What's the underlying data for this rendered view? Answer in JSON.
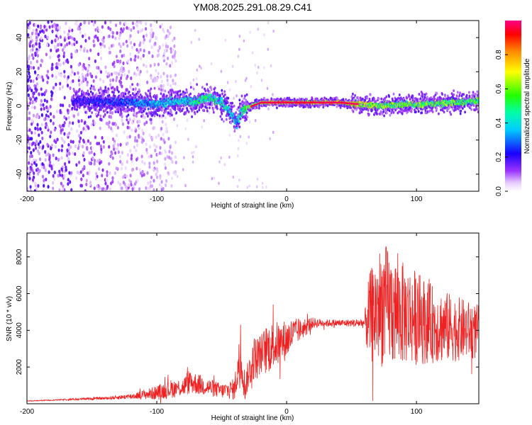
{
  "figure": {
    "title": "YM08.2025.291.08.29.C41"
  },
  "chart_data": [
    {
      "type": "heatmap",
      "title": "YM08.2025.291.08.29.C41",
      "xlabel": "Height of straight line (km)",
      "ylabel": "Frequency (Hz)",
      "xlim": [
        -200,
        148
      ],
      "ylim": [
        -50,
        50
      ],
      "xticks": [
        -200,
        -100,
        0,
        100
      ],
      "yticks": [
        -40,
        -20,
        0,
        20,
        40
      ],
      "colorbar": {
        "label": "Normalized spectral amplitude",
        "range": [
          0,
          1
        ],
        "ticks": [
          0.0,
          0.2,
          0.4,
          0.6,
          0.8
        ],
        "colors": [
          "#ffffff",
          "#cc99ff",
          "#7700ee",
          "#0000ff",
          "#00ffff",
          "#00ff00",
          "#ffff00",
          "#ff8800",
          "#ff0000",
          "#ff0066"
        ]
      },
      "ridge": {
        "description_x": [
          -160,
          -120,
          -100,
          -80,
          -70,
          -60,
          -50,
          -45,
          -38,
          -35,
          -30,
          -20,
          -10,
          0,
          20,
          40,
          55,
          70,
          90,
          110,
          130,
          148
        ],
        "frequency_hz": [
          3,
          2,
          1,
          3,
          2,
          5,
          2,
          -2,
          -10,
          -3,
          -1,
          2,
          2,
          2,
          2,
          2,
          1,
          0,
          1,
          1,
          2,
          3
        ],
        "peak_amplitude": [
          0.25,
          0.35,
          0.45,
          0.5,
          0.55,
          0.6,
          0.55,
          0.5,
          0.45,
          0.55,
          0.7,
          0.8,
          0.9,
          0.95,
          0.95,
          0.95,
          0.85,
          0.75,
          0.7,
          0.7,
          0.7,
          0.65
        ]
      },
      "noise_region_x": [
        -200,
        -100
      ]
    },
    {
      "type": "line",
      "xlabel": "Height of straight line (km)",
      "ylabel": "SNR (10 * v/v)",
      "xlim": [
        -200,
        148
      ],
      "ylim": [
        0,
        9300
      ],
      "xticks": [
        -200,
        -100,
        0,
        100
      ],
      "yticks": [
        2000,
        4000,
        6000,
        8000
      ],
      "color": "#ee2222",
      "series": [
        {
          "name": "SNR",
          "x": [
            -200,
            -180,
            -160,
            -140,
            -120,
            -110,
            -100,
            -90,
            -80,
            -75,
            -70,
            -60,
            -50,
            -40,
            -38,
            -35,
            -32,
            -30,
            -25,
            -20,
            -15,
            -10,
            -5,
            0,
            5,
            10,
            15,
            20,
            30,
            40,
            50,
            60,
            62,
            65,
            70,
            75,
            80,
            85,
            90,
            100,
            110,
            120,
            130,
            140,
            148
          ],
          "y": [
            150,
            200,
            250,
            300,
            400,
            500,
            600,
            800,
            900,
            1200,
            1100,
            900,
            700,
            800,
            1800,
            2600,
            800,
            1500,
            2500,
            2700,
            3000,
            3200,
            3300,
            3500,
            3800,
            4000,
            4200,
            4400,
            4400,
            4400,
            4400,
            4400,
            4600,
            4800,
            5200,
            5400,
            5200,
            5000,
            4900,
            4700,
            4400,
            4200,
            4100,
            4000,
            3900
          ],
          "envelope": [
            20,
            30,
            50,
            80,
            150,
            250,
            400,
            500,
            500,
            700,
            600,
            500,
            400,
            600,
            1200,
            1600,
            700,
            800,
            1200,
            1100,
            1400,
            1300,
            1200,
            1100,
            900,
            600,
            500,
            300,
            200,
            200,
            200,
            300,
            2000,
            2600,
            3200,
            3400,
            3200,
            3000,
            2800,
            2600,
            2200,
            2000,
            1800,
            1600,
            1500
          ]
        }
      ]
    }
  ]
}
